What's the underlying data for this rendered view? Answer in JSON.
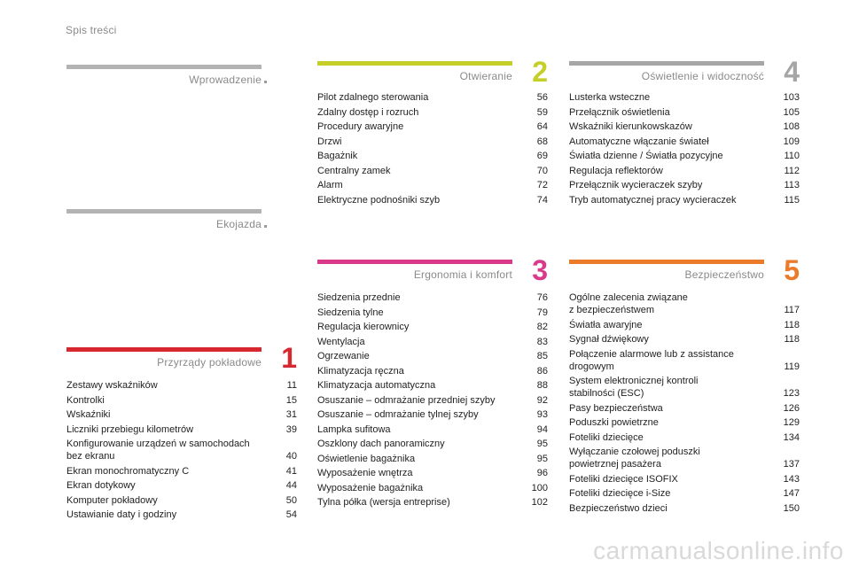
{
  "header": {
    "title": "Spis treści"
  },
  "sections": [
    {
      "id": "wprowadzenie",
      "title": "Wprowadzenie",
      "number": "",
      "color": "#b3b3b3",
      "entries": []
    },
    {
      "id": "ekojazda",
      "title": "Ekojazda",
      "number": "",
      "color": "#b3b3b3",
      "entries": []
    },
    {
      "id": "przyrzady",
      "title": "Przyrządy pokładowe",
      "number": "1",
      "color": "#d6282e",
      "entries": [
        {
          "label": "Zestawy wskaźników",
          "page": "11"
        },
        {
          "label": "Kontrolki",
          "page": "15"
        },
        {
          "label": "Wskaźniki",
          "page": "31"
        },
        {
          "label": "Liczniki przebiegu kilometrów",
          "page": "39"
        },
        {
          "label": "Konfigurowanie urządzeń w samochodach\n    bez ekranu",
          "page": "40"
        },
        {
          "label": "Ekran monochromatyczny C",
          "page": "41"
        },
        {
          "label": "Ekran dotykowy",
          "page": "44"
        },
        {
          "label": "Komputer pokładowy",
          "page": "50"
        },
        {
          "label": "Ustawianie daty i godziny",
          "page": "54"
        }
      ]
    },
    {
      "id": "otwieranie",
      "title": "Otwieranie",
      "number": "2",
      "color": "#c5cf28",
      "entries": [
        {
          "label": "Pilot zdalnego sterowania",
          "page": "56"
        },
        {
          "label": "Zdalny dostęp i rozruch",
          "page": "59"
        },
        {
          "label": "Procedury awaryjne",
          "page": "64"
        },
        {
          "label": "Drzwi",
          "page": "68"
        },
        {
          "label": "Bagażnik",
          "page": "69"
        },
        {
          "label": "Centralny zamek",
          "page": "70"
        },
        {
          "label": "Alarm",
          "page": "72"
        },
        {
          "label": "Elektryczne podnośniki szyb",
          "page": "74"
        }
      ]
    },
    {
      "id": "ergonomia",
      "title": "Ergonomia i komfort",
      "number": "3",
      "color": "#d93a8a",
      "entries": [
        {
          "label": "Siedzenia przednie",
          "page": "76"
        },
        {
          "label": "Siedzenia tylne",
          "page": "79"
        },
        {
          "label": "Regulacja kierownicy",
          "page": "82"
        },
        {
          "label": "Wentylacja",
          "page": "83"
        },
        {
          "label": "Ogrzewanie",
          "page": "85"
        },
        {
          "label": "Klimatyzacja ręczna",
          "page": "86"
        },
        {
          "label": "Klimatyzacja automatyczna",
          "page": "88"
        },
        {
          "label": "Osuszanie – odmrażanie przedniej szyby",
          "page": "92"
        },
        {
          "label": "Osuszanie – odmrażanie tylnej szyby",
          "page": "93"
        },
        {
          "label": "Lampka sufitowa",
          "page": "94"
        },
        {
          "label": "Oszklony dach panoramiczny",
          "page": "95"
        },
        {
          "label": "Oświetlenie bagażnika",
          "page": "95"
        },
        {
          "label": "Wyposażenie wnętrza",
          "page": "96"
        },
        {
          "label": "Wyposażenie bagażnika",
          "page": "100"
        },
        {
          "label": "Tylna półka (wersja entreprise)",
          "page": "102"
        }
      ]
    },
    {
      "id": "oswietlenie",
      "title": "Oświetlenie i widoczność",
      "number": "4",
      "color": "#a6a6a6",
      "entries": [
        {
          "label": "Lusterka wsteczne",
          "page": "103"
        },
        {
          "label": "Przełącznik oświetlenia",
          "page": "105"
        },
        {
          "label": "Wskaźniki kierunkowskazów",
          "page": "108"
        },
        {
          "label": "Automatyczne włączanie świateł",
          "page": "109"
        },
        {
          "label": "Światła dzienne / Światła pozycyjne",
          "page": "110"
        },
        {
          "label": "Regulacja reflektorów",
          "page": "112"
        },
        {
          "label": "Przełącznik wycieraczek szyby",
          "page": "113"
        },
        {
          "label": "Tryb automatycznej pracy wycieraczek",
          "page": "115"
        }
      ]
    },
    {
      "id": "bezpieczenstwo",
      "title": "Bezpieczeństwo",
      "number": "5",
      "color": "#ec7a2b",
      "entries": [
        {
          "label": "Ogólne zalecenia związane\n    z bezpieczeństwem",
          "page": "117"
        },
        {
          "label": "Światła awaryjne",
          "page": "118"
        },
        {
          "label": "Sygnał dźwiękowy",
          "page": "118"
        },
        {
          "label": "Połączenie alarmowe lub z assistance\n    drogowym",
          "page": "119"
        },
        {
          "label": "System elektronicznej kontroli\n    stabilności (ESC)",
          "page": "123"
        },
        {
          "label": "Pasy bezpieczeństwa",
          "page": "126"
        },
        {
          "label": "Poduszki powietrzne",
          "page": "129"
        },
        {
          "label": "Foteliki dziecięce",
          "page": "134"
        },
        {
          "label": "Wyłączanie czołowej poduszki\n    powietrznej pasażera",
          "page": "137"
        },
        {
          "label": "Foteliki dziecięce ISOFIX",
          "page": "143"
        },
        {
          "label": "Foteliki dziecięce i-Size",
          "page": "147"
        },
        {
          "label": "Bezpieczeństwo dzieci",
          "page": "150"
        }
      ]
    }
  ],
  "watermark": "carmanualsonline.info"
}
